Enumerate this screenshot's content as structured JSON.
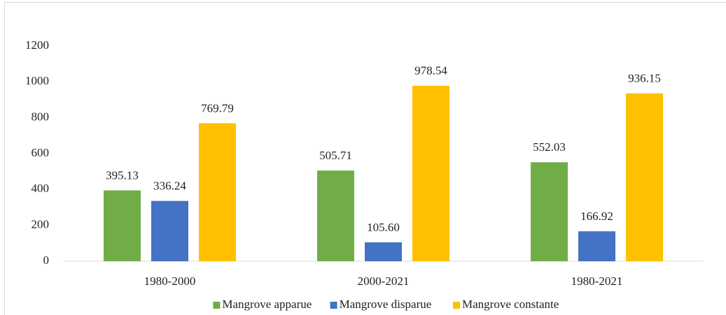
{
  "chart_data": {
    "type": "bar",
    "categories": [
      "1980-2000",
      "2000-2021",
      "1980-2021"
    ],
    "series": [
      {
        "name": "Mangrove apparue",
        "color": "#70ad47",
        "values": [
          395.13,
          505.71,
          552.03
        ],
        "value_labels": [
          "395.13",
          "505.71",
          "552.03"
        ]
      },
      {
        "name": "Mangrove disparue",
        "color": "#4472c4",
        "values": [
          336.24,
          105.6,
          166.92
        ],
        "value_labels": [
          "336.24",
          "105.60",
          "166.92"
        ]
      },
      {
        "name": "Mangrove constante",
        "color": "#ffc000",
        "values": [
          769.79,
          978.54,
          936.15
        ],
        "value_labels": [
          "769.79",
          "978.54",
          "936.15"
        ]
      }
    ],
    "ylim": [
      0,
      1200
    ],
    "yticks": [
      0,
      200,
      400,
      600,
      800,
      1000,
      1200
    ],
    "grid": false,
    "legend": "bottom"
  }
}
